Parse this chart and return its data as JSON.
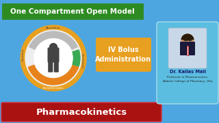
{
  "bg_color": "#4DA6E0",
  "title_box_color": "#2E8B22",
  "title_text": "One Compartment Open Model",
  "title_text_color": "#FFFFFF",
  "bolus_box_color": "#E8A020",
  "bolus_text": "IV Bolus\nAdministration",
  "bolus_text_color": "#FFFFFF",
  "bottom_bar_color": "#AA1111",
  "bottom_bar_border": "#CC3333",
  "bottom_text": "Pharmacokinetics",
  "bottom_text_color": "#FFFFFF",
  "doctor_name": "Dr. Kailas Mali",
  "doctor_title1": "Professor in Pharmaceutics,",
  "doctor_title2": "Adarsh College of Pharmacy, Vita",
  "doctor_name_color": "#1A1A6E",
  "doctor_title_color": "#222222",
  "info_box_color": "#5BBDE0",
  "circle_outer_color": "#E8A020",
  "figure_color": "#444444",
  "arc_gray": "#BBBBBB",
  "arc_orange": "#E8821A",
  "arc_green": "#3AAA55",
  "label_color": "#444444"
}
